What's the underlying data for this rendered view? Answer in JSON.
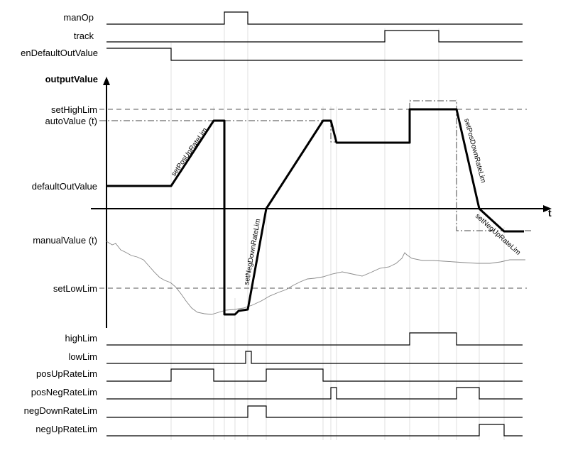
{
  "signals": {
    "manOp": "manOp",
    "track": "track",
    "enDefaultOutValue": "enDefaultOutValue",
    "highLim": "highLim",
    "lowLim": "lowLim",
    "posUpRateLim": "posUpRateLim",
    "posNegRateLim": "posNegRateLim",
    "negDownRateLim": "negDownRateLim",
    "negUpRateLim": "negUpRateLim"
  },
  "axis": {
    "y_label": "outputValue",
    "x_label": "t"
  },
  "levels": {
    "setHighLim": "setHighLim",
    "autoValue": "autoValue (t)",
    "defaultOutValue": "defaultOutValue",
    "manualValue": "manualValue (t)",
    "setLowLim": "setLowLim"
  },
  "annotations": {
    "setPosUpRateLim": "setPosUpRateLim",
    "setNegDownRateLim": "setNegDownRateLim",
    "setPosDownRateLim": "setPosDownRateLim",
    "setNegUpRateLim": "setNegUpRateLim"
  }
}
